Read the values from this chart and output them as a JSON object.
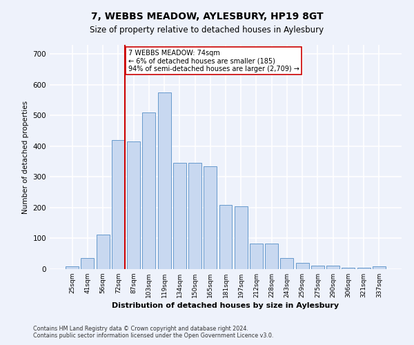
{
  "title": "7, WEBBS MEADOW, AYLESBURY, HP19 8GT",
  "subtitle": "Size of property relative to detached houses in Aylesbury",
  "xlabel": "Distribution of detached houses by size in Aylesbury",
  "ylabel": "Number of detached properties",
  "footnote1": "Contains HM Land Registry data © Crown copyright and database right 2024.",
  "footnote2": "Contains public sector information licensed under the Open Government Licence v3.0.",
  "bar_color": "#c8d8f0",
  "bar_edge_color": "#6699cc",
  "categories": [
    "25sqm",
    "41sqm",
    "56sqm",
    "72sqm",
    "87sqm",
    "103sqm",
    "119sqm",
    "134sqm",
    "150sqm",
    "165sqm",
    "181sqm",
    "197sqm",
    "212sqm",
    "228sqm",
    "243sqm",
    "259sqm",
    "275sqm",
    "290sqm",
    "306sqm",
    "321sqm",
    "337sqm"
  ],
  "bar_values": [
    10,
    35,
    112,
    420,
    415,
    510,
    575,
    347,
    347,
    335,
    210,
    205,
    83,
    83,
    35,
    20,
    12,
    12,
    5,
    5,
    8
  ],
  "property_line_color": "#cc0000",
  "annotation_line1": "7 WEBBS MEADOW: 74sqm",
  "annotation_line2": "← 6% of detached houses are smaller (185)",
  "annotation_line3": "94% of semi-detached houses are larger (2,709) →",
  "annotation_box_color": "#ffffff",
  "annotation_box_edge_color": "#cc0000",
  "ylim": [
    0,
    730
  ],
  "background_color": "#eef2fb",
  "grid_color": "#ffffff",
  "prop_bar_index": 3,
  "title_fontsize": 10,
  "subtitle_fontsize": 8.5
}
